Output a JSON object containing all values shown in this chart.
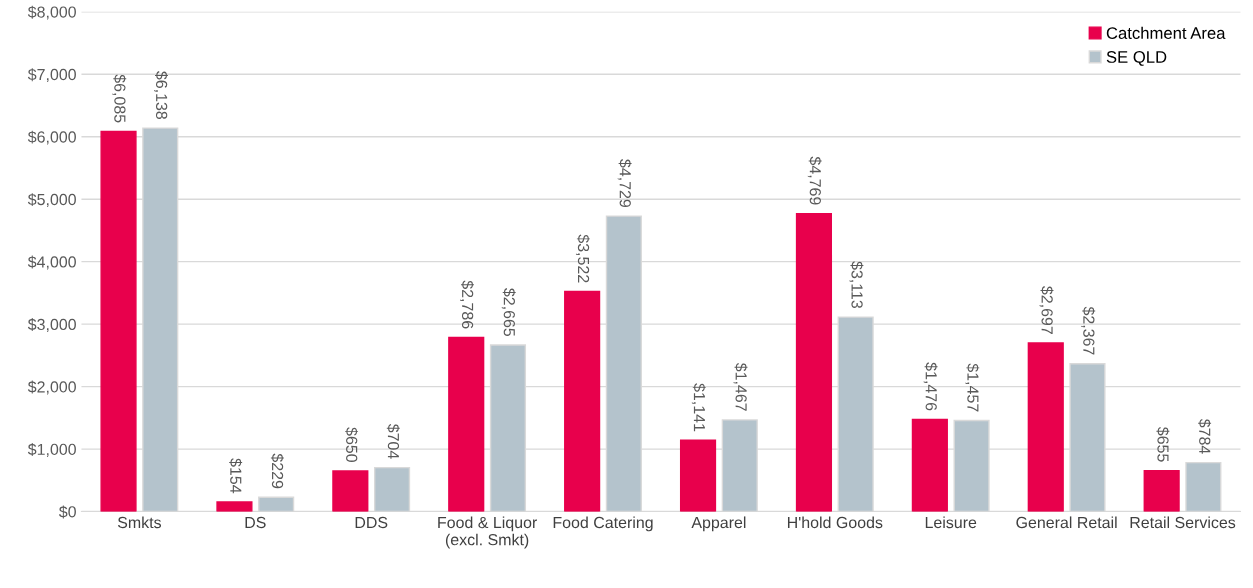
{
  "chart_data": {
    "type": "bar",
    "categories": [
      "Smkts",
      "DS",
      "DDS",
      "Food & Liquor\n(excl. Smkt)",
      "Food Catering",
      "Apparel",
      "H'hold Goods",
      "Leisure",
      "General Retail",
      "Retail Services"
    ],
    "series": [
      {
        "name": "Catchment Area",
        "color": "#e8004c",
        "values": [
          6085,
          154,
          650,
          2786,
          3522,
          1141,
          4769,
          1476,
          2697,
          655
        ],
        "value_labels": [
          "$6,085",
          "$154",
          "$650",
          "$2,786",
          "$3,522",
          "$1,141",
          "$4,769",
          "$1,476",
          "$2,697",
          "$655"
        ]
      },
      {
        "name": "SE QLD",
        "color": "#b4c3cc",
        "values": [
          6138,
          229,
          704,
          2665,
          4729,
          1467,
          3113,
          1457,
          2367,
          784
        ],
        "value_labels": [
          "$6,138",
          "$229",
          "$704",
          "$2,665",
          "$4,729",
          "$1,467",
          "$3,113",
          "$1,457",
          "$2,367",
          "$784"
        ]
      }
    ],
    "ylim": [
      0,
      8000
    ],
    "yticks": [
      {
        "value": 0,
        "label": "$0"
      },
      {
        "value": 1000,
        "label": "$1,000"
      },
      {
        "value": 2000,
        "label": "$2,000"
      },
      {
        "value": 3000,
        "label": "$3,000"
      },
      {
        "value": 4000,
        "label": "$4,000"
      },
      {
        "value": 5000,
        "label": "$5,000"
      },
      {
        "value": 6000,
        "label": "$6,000"
      },
      {
        "value": 7000,
        "label": "$7,000"
      },
      {
        "value": 8000,
        "label": "$8,000"
      }
    ],
    "grid": "y",
    "legend": "top right"
  }
}
